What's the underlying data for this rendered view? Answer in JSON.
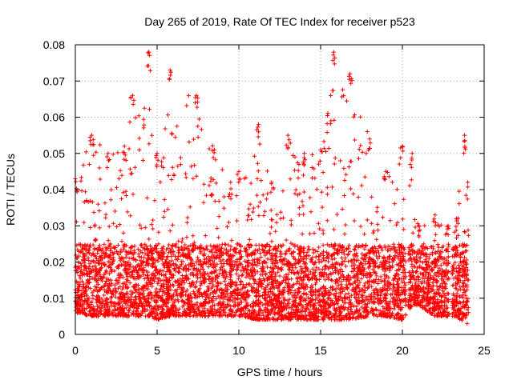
{
  "chart_data": {
    "type": "scatter",
    "title": "Day 265 of 2019, Rate Of TEC Index for receiver p523",
    "xlabel": "GPS time / hours",
    "ylabel": "ROTI / TECUs",
    "xlim": [
      0,
      25
    ],
    "ylim": [
      0,
      0.08
    ],
    "xticks": [
      0,
      5,
      10,
      15,
      20,
      25
    ],
    "xtick_labels": [
      "0",
      "5",
      "10",
      "15",
      "20",
      "25"
    ],
    "yticks": [
      0,
      0.01,
      0.02,
      0.03,
      0.04,
      0.05,
      0.06,
      0.07,
      0.08
    ],
    "ytick_labels": [
      "0",
      "0.01",
      "0.02",
      "0.03",
      "0.04",
      "0.05",
      "0.06",
      "0.07",
      "0.08"
    ],
    "grid": true,
    "marker": "+",
    "color": "#ff0000",
    "envelope": [
      {
        "x": 0.0,
        "lo": 0.006,
        "hi": 0.043
      },
      {
        "x": 1.0,
        "lo": 0.005,
        "hi": 0.055
      },
      {
        "x": 2.0,
        "lo": 0.005,
        "hi": 0.05
      },
      {
        "x": 3.0,
        "lo": 0.005,
        "hi": 0.052
      },
      {
        "x": 3.5,
        "lo": 0.005,
        "hi": 0.066
      },
      {
        "x": 4.5,
        "lo": 0.005,
        "hi": 0.078
      },
      {
        "x": 5.0,
        "lo": 0.004,
        "hi": 0.05
      },
      {
        "x": 5.8,
        "lo": 0.005,
        "hi": 0.073
      },
      {
        "x": 7.4,
        "lo": 0.005,
        "hi": 0.066
      },
      {
        "x": 8.5,
        "lo": 0.005,
        "hi": 0.051
      },
      {
        "x": 9.5,
        "lo": 0.005,
        "hi": 0.042
      },
      {
        "x": 10.0,
        "lo": 0.005,
        "hi": 0.045
      },
      {
        "x": 11.2,
        "lo": 0.004,
        "hi": 0.058
      },
      {
        "x": 12.0,
        "lo": 0.004,
        "hi": 0.042
      },
      {
        "x": 13.0,
        "lo": 0.004,
        "hi": 0.055
      },
      {
        "x": 14.0,
        "lo": 0.004,
        "hi": 0.05
      },
      {
        "x": 15.0,
        "lo": 0.004,
        "hi": 0.051
      },
      {
        "x": 15.8,
        "lo": 0.004,
        "hi": 0.078
      },
      {
        "x": 16.8,
        "lo": 0.004,
        "hi": 0.072
      },
      {
        "x": 18.0,
        "lo": 0.005,
        "hi": 0.054
      },
      {
        "x": 19.0,
        "lo": 0.005,
        "hi": 0.045
      },
      {
        "x": 20.0,
        "lo": 0.004,
        "hi": 0.052
      },
      {
        "x": 20.6,
        "lo": 0.008,
        "hi": 0.05
      },
      {
        "x": 21.0,
        "lo": 0.008,
        "hi": 0.03
      },
      {
        "x": 22.0,
        "lo": 0.005,
        "hi": 0.033
      },
      {
        "x": 22.8,
        "lo": 0.005,
        "hi": 0.03
      },
      {
        "x": 23.3,
        "lo": 0.005,
        "hi": 0.032
      },
      {
        "x": 23.8,
        "lo": 0.003,
        "hi": 0.055
      },
      {
        "x": 24.0,
        "lo": 0.003,
        "hi": 0.042
      }
    ],
    "bulk_upper": 0.025,
    "gaps_hours": [
      [
        20.2,
        20.35
      ],
      [
        22.85,
        23.05
      ]
    ]
  }
}
